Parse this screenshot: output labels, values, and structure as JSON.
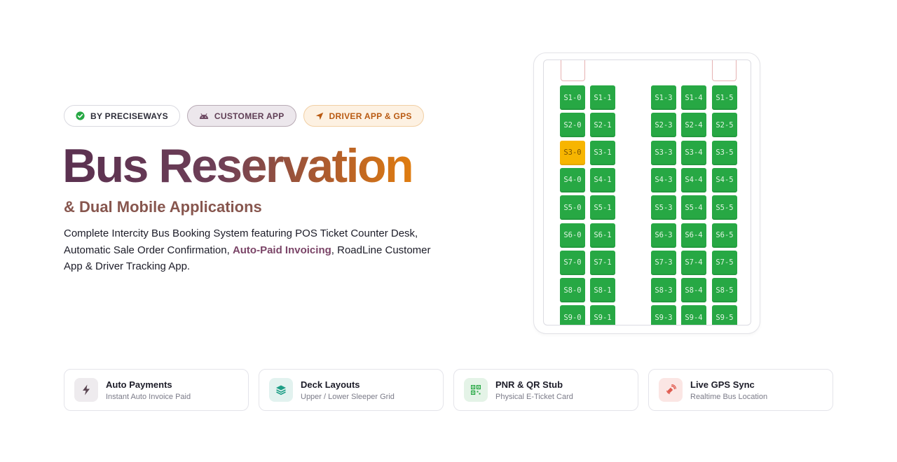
{
  "badges": [
    {
      "label": "BY PRECISEWAYS",
      "icon": "check-circle-icon",
      "color": "#27a844"
    },
    {
      "label": "CUSTOMER APP",
      "icon": "android-icon",
      "color": "#5f3e55"
    },
    {
      "label": "DRIVER APP & GPS",
      "icon": "navigation-arrow-icon",
      "color": "#b95a12"
    }
  ],
  "hero": {
    "title": "Bus Reservation",
    "subtitle": "& Dual Mobile Applications",
    "description_1": "Complete Intercity Bus Booking System featuring POS Ticket Counter Desk, Automatic Sale Order Confirmation, ",
    "description_highlight": "Auto-Paid Invoicing",
    "description_2": ", RoadLine Customer App & Driver Tracking App."
  },
  "bus": {
    "rows": [
      "S1",
      "S2",
      "S3",
      "S4",
      "S5",
      "S6",
      "S7",
      "S8",
      "S9"
    ],
    "columns": [
      "0",
      "1",
      "3",
      "4",
      "5"
    ],
    "selected_seat": "S3-0",
    "seat_color": "#27a844",
    "selected_color": "#f7b500"
  },
  "features": [
    {
      "title": "Auto Payments",
      "subtitle": "Instant Auto Invoice Paid",
      "icon": "lightning-icon"
    },
    {
      "title": "Deck Layouts",
      "subtitle": "Upper / Lower Sleeper Grid",
      "icon": "layers-icon"
    },
    {
      "title": "PNR & QR Stub",
      "subtitle": "Physical E-Ticket Card",
      "icon": "qr-code-icon"
    },
    {
      "title": "Live GPS Sync",
      "subtitle": "Realtime Bus Location",
      "icon": "satellite-icon"
    }
  ]
}
